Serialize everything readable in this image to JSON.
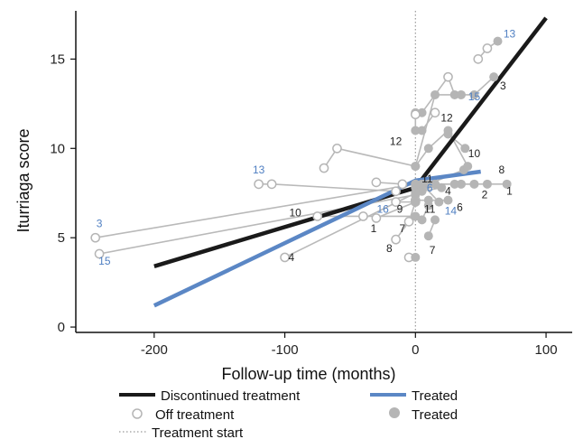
{
  "colors": {
    "off_marker": "#b5b5b5",
    "treated_marker": "#b5b5b5",
    "connector": "#b9b9b9",
    "trend_discontinued": "#1a1a1a",
    "trend_treated": "#5b87c5",
    "label_dark": "#222222",
    "label_blue": "#4f7fc2",
    "treatment_start": "#999999"
  },
  "chart_data": {
    "type": "scatter",
    "xlabel": "Follow-up time (months)",
    "ylabel": "Iturriaga score",
    "xlim": [
      -260,
      120
    ],
    "ylim": [
      -0.3,
      17.7
    ],
    "xticks": [
      -200,
      -100,
      0,
      100
    ],
    "yticks": [
      0,
      5,
      10,
      15
    ],
    "x_tick_labels": [
      "-200",
      "-100",
      "0",
      "100"
    ],
    "y_tick_labels": [
      "0",
      "5",
      "10",
      "15"
    ],
    "treatment_start_x": 0,
    "trend_lines": [
      {
        "name": "Discontinued treatment",
        "points": [
          [
            -200,
            3.4
          ],
          [
            0,
            7.8
          ],
          [
            100,
            17.3
          ]
        ]
      },
      {
        "name": "Treated",
        "points": [
          [
            -200,
            1.2
          ],
          [
            0,
            8.2
          ],
          [
            50,
            8.7
          ]
        ]
      }
    ],
    "patients": [
      {
        "id": "1",
        "label_color": "blue",
        "off": [
          [
            -30,
            6.1
          ],
          [
            0,
            7.0
          ]
        ],
        "on": [
          [
            5,
            8.0
          ],
          [
            35,
            8.0
          ],
          [
            55,
            8.0
          ],
          [
            70,
            8.0
          ]
        ]
      },
      {
        "id": "2",
        "label_color": "dark",
        "off": [],
        "on": [
          [
            15,
            8.0
          ],
          [
            30,
            8.0
          ],
          [
            45,
            8.0
          ]
        ]
      },
      {
        "id": "3",
        "label_color": "blue",
        "off": [
          [
            -245,
            5.0
          ]
        ],
        "on": [
          [
            0,
            8.0
          ]
        ]
      },
      {
        "id": "3",
        "label_color": "dark",
        "off": [
          [
            25,
            14.0
          ]
        ],
        "on": [
          [
            0,
            12.0
          ],
          [
            5,
            12.0
          ],
          [
            30,
            13.0
          ],
          [
            45,
            13.0
          ],
          [
            60,
            14.0
          ]
        ]
      },
      {
        "id": "4",
        "label_color": "dark",
        "off": [
          [
            -100,
            3.9
          ]
        ],
        "on": [
          [
            0,
            7.5
          ]
        ]
      },
      {
        "id": "4",
        "label_color": "dark",
        "off": [],
        "on": [
          [
            5,
            7.6
          ],
          [
            20,
            7.8
          ]
        ]
      },
      {
        "id": "5",
        "label_color": "blue",
        "off": [],
        "on": [
          [
            10,
            8.0
          ],
          [
            15,
            8.0
          ]
        ]
      },
      {
        "id": "6",
        "label_color": "dark",
        "off": [
          [
            0,
            7.1
          ]
        ],
        "on": [
          [
            10,
            7.1
          ],
          [
            25,
            7.1
          ]
        ]
      },
      {
        "id": "7",
        "label_color": "dark",
        "off": [
          [
            -15,
            4.9
          ],
          [
            -5,
            5.9
          ]
        ],
        "on": [
          [
            0,
            7.0
          ]
        ]
      },
      {
        "id": "7",
        "label_color": "dark",
        "off": [],
        "on": [
          [
            10,
            5.1
          ],
          [
            15,
            6.0
          ]
        ]
      },
      {
        "id": "8",
        "label_color": "dark",
        "off": [
          [
            -5,
            3.9
          ]
        ],
        "on": [
          [
            0,
            3.9
          ]
        ]
      },
      {
        "id": "8",
        "label_color": "dark",
        "off": [],
        "on": [
          [
            10,
            8.0
          ],
          [
            37,
            8.8
          ]
        ]
      },
      {
        "id": "9",
        "label_color": "dark",
        "off": [
          [
            -15,
            7.0
          ]
        ],
        "on": [
          [
            0,
            7.0
          ]
        ]
      },
      {
        "id": "10",
        "label_color": "dark",
        "off": [
          [
            -75,
            6.2
          ],
          [
            -40,
            6.2
          ]
        ],
        "on": [
          [
            0,
            6.2
          ]
        ]
      },
      {
        "id": "10",
        "label_color": "dark",
        "off": [],
        "on": [
          [
            25,
            10.8
          ],
          [
            38,
            10.0
          ]
        ]
      },
      {
        "id": "11",
        "label_color": "dark",
        "off": [],
        "on": [
          [
            0,
            9.0
          ],
          [
            10,
            10.0
          ],
          [
            25,
            11.0
          ],
          [
            40,
            9.0
          ]
        ]
      },
      {
        "id": "11",
        "label_color": "dark",
        "off": [],
        "on": [
          [
            5,
            6.0
          ],
          [
            10,
            6.8
          ]
        ]
      },
      {
        "id": "12",
        "label_color": "dark",
        "off": [
          [
            0,
            11.9
          ],
          [
            15,
            12.0
          ]
        ],
        "on": [
          [
            0,
            11.0
          ],
          [
            5,
            11.0
          ]
        ]
      },
      {
        "id": "13",
        "label_color": "blue",
        "off": [
          [
            -120,
            8.0
          ],
          [
            -110,
            8.0
          ],
          [
            -15,
            7.6
          ]
        ],
        "on": [
          [
            0,
            7.8
          ]
        ]
      },
      {
        "id": "13",
        "label_color": "blue",
        "off": [
          [
            48,
            15.0
          ],
          [
            55,
            15.6
          ]
        ],
        "on": [
          [
            63,
            16.0
          ]
        ]
      },
      {
        "id": "14",
        "label_color": "blue",
        "off": [],
        "on": [
          [
            5,
            8.0
          ],
          [
            18,
            7.0
          ]
        ]
      },
      {
        "id": "15",
        "label_color": "blue",
        "off": [
          [
            -242,
            4.1
          ]
        ],
        "on": [
          [
            0,
            7.4
          ]
        ]
      },
      {
        "id": "15",
        "label_color": "blue",
        "off": [
          [
            -60,
            10.0
          ],
          [
            -70,
            8.9
          ]
        ],
        "on": [
          [
            0,
            9.0
          ],
          [
            15,
            13.0
          ],
          [
            35,
            13.0
          ]
        ]
      },
      {
        "id": "16",
        "label_color": "blue",
        "off": [
          [
            -30,
            8.1
          ],
          [
            -10,
            8.0
          ]
        ],
        "on": [
          [
            0,
            8.0
          ]
        ]
      }
    ],
    "point_labels": [
      {
        "text": "3",
        "x": -242,
        "y": 5.6,
        "color": "blue"
      },
      {
        "text": "15",
        "x": -238,
        "y": 3.5,
        "color": "blue"
      },
      {
        "text": "13",
        "x": -120,
        "y": 8.6,
        "color": "blue"
      },
      {
        "text": "10",
        "x": -92,
        "y": 6.2,
        "color": "dark"
      },
      {
        "text": "4",
        "x": -95,
        "y": 3.7,
        "color": "dark"
      },
      {
        "text": "16",
        "x": -25,
        "y": 6.4,
        "color": "blue"
      },
      {
        "text": "9",
        "x": -12,
        "y": 6.4,
        "color": "dark"
      },
      {
        "text": "1",
        "x": -32,
        "y": 5.3,
        "color": "dark"
      },
      {
        "text": "7",
        "x": -10,
        "y": 5.3,
        "color": "dark"
      },
      {
        "text": "8",
        "x": -20,
        "y": 4.2,
        "color": "dark"
      },
      {
        "text": "12",
        "x": -15,
        "y": 10.2,
        "color": "dark"
      },
      {
        "text": "11",
        "x": 9,
        "y": 8.1,
        "color": "dark"
      },
      {
        "text": "6",
        "x": 11,
        "y": 7.6,
        "color": "blue"
      },
      {
        "text": "4",
        "x": 25,
        "y": 7.4,
        "color": "dark"
      },
      {
        "text": "11",
        "x": 11,
        "y": 6.4,
        "color": "dark"
      },
      {
        "text": "14",
        "x": 27,
        "y": 6.3,
        "color": "blue"
      },
      {
        "text": "6",
        "x": 34,
        "y": 6.5,
        "color": "dark"
      },
      {
        "text": "7",
        "x": 13,
        "y": 4.1,
        "color": "dark"
      },
      {
        "text": "12",
        "x": 24,
        "y": 11.5,
        "color": "dark"
      },
      {
        "text": "10",
        "x": 45,
        "y": 9.5,
        "color": "dark"
      },
      {
        "text": "15",
        "x": 45,
        "y": 12.7,
        "color": "blue"
      },
      {
        "text": "3",
        "x": 67,
        "y": 13.3,
        "color": "dark"
      },
      {
        "text": "13",
        "x": 72,
        "y": 16.2,
        "color": "blue"
      },
      {
        "text": "8",
        "x": 66,
        "y": 8.6,
        "color": "dark"
      },
      {
        "text": "2",
        "x": 53,
        "y": 7.2,
        "color": "dark"
      },
      {
        "text": "1",
        "x": 72,
        "y": 7.4,
        "color": "dark"
      }
    ],
    "legend": [
      {
        "label": "Discontinued treatment",
        "symbol": "line-black"
      },
      {
        "label": "Treated",
        "symbol": "line-blue"
      },
      {
        "label": "Off treatment",
        "symbol": "open-circle"
      },
      {
        "label": "Treated",
        "symbol": "filled-circle"
      },
      {
        "label": "Treatment start",
        "symbol": "dotted-line"
      }
    ]
  }
}
